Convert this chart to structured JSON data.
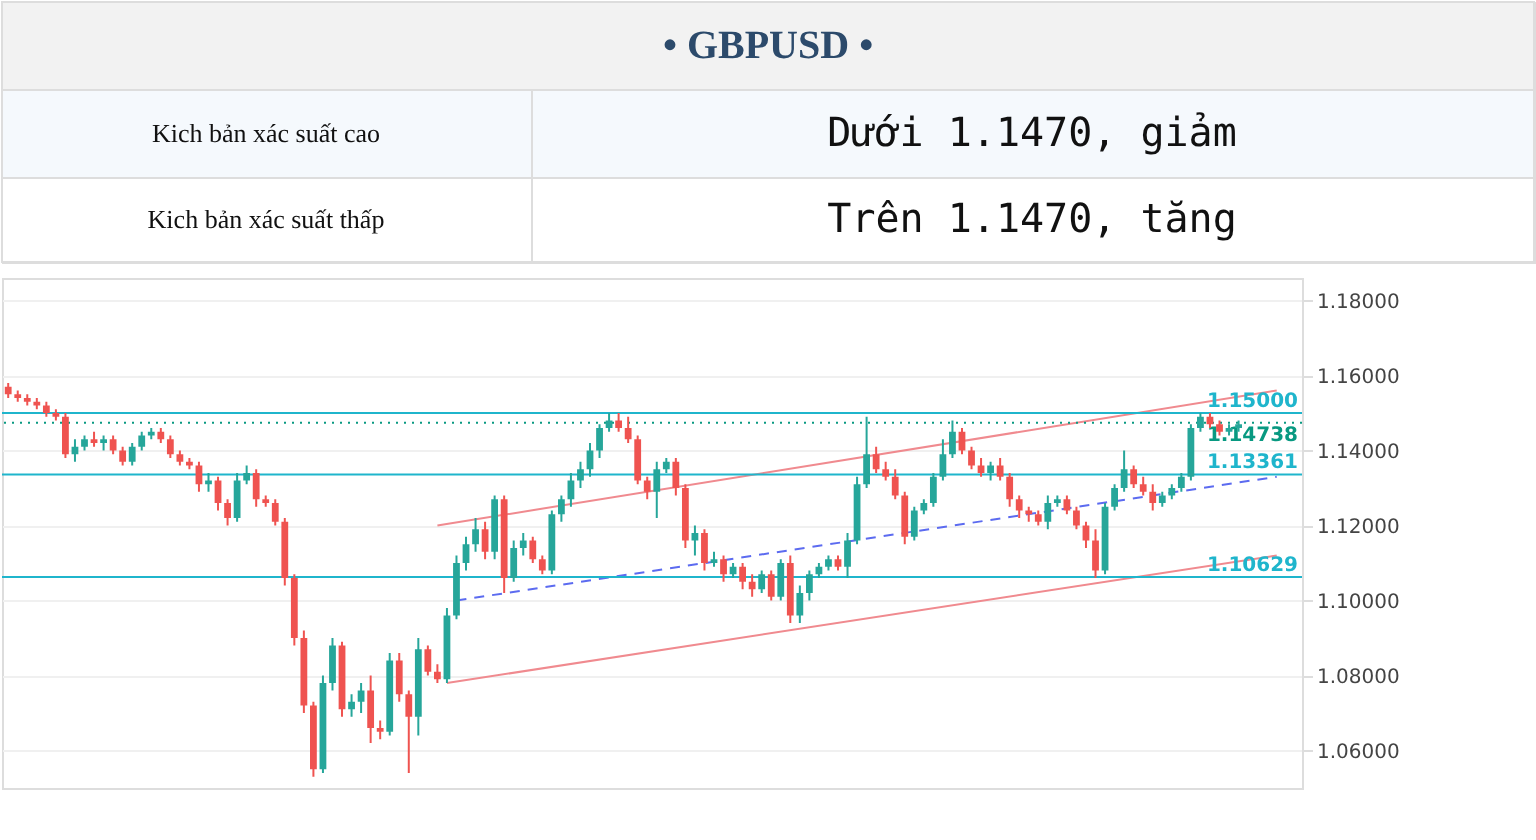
{
  "chart_data": {
    "type": "candlestick",
    "title": "•   GBPUSD •",
    "annotations": [
      "Kich bản xác suất cao",
      "Dưới 1.1470, giảm",
      "Kich bản xác suất thấp",
      "Trên 1.1470, tăng"
    ],
    "categories": [
      null,
      null,
      null,
      null,
      null,
      null,
      null,
      null,
      null,
      null,
      null,
      null,
      null,
      null,
      null,
      null,
      null,
      null,
      null,
      null,
      null,
      null,
      null,
      null,
      null,
      null,
      null,
      null,
      null,
      null,
      null,
      null,
      null,
      null,
      null,
      null,
      null,
      null,
      null,
      null,
      null,
      null,
      null,
      null,
      null,
      null,
      null,
      null,
      null,
      null,
      null,
      null,
      null,
      null,
      null,
      null,
      null,
      null,
      null,
      null,
      null,
      null,
      null,
      null,
      null,
      null,
      null,
      null,
      null,
      null,
      null,
      null,
      null,
      null,
      null,
      null,
      null,
      null,
      null,
      null,
      null,
      null,
      null,
      null,
      null,
      null,
      null,
      null,
      null,
      null,
      null,
      null,
      null,
      null,
      null,
      null,
      null,
      null,
      null,
      null,
      null,
      null,
      null,
      null,
      null,
      null,
      null,
      null,
      null,
      null,
      null,
      null,
      null,
      null,
      null,
      null,
      null,
      null,
      null,
      null,
      null,
      null,
      null,
      null,
      null,
      null,
      null,
      null,
      null,
      null,
      null,
      null,
      null,
      null,
      null,
      null
    ],
    "ohlc": [
      [
        1.157,
        1.158,
        1.154,
        1.155
      ],
      [
        1.155,
        1.156,
        1.153,
        1.154
      ],
      [
        1.154,
        1.155,
        1.152,
        1.153
      ],
      [
        1.153,
        1.154,
        1.151,
        1.152
      ],
      [
        1.152,
        1.153,
        1.149,
        1.15
      ],
      [
        1.15,
        1.151,
        1.148,
        1.149
      ],
      [
        1.149,
        1.15,
        1.138,
        1.139
      ],
      [
        1.139,
        1.143,
        1.137,
        1.141
      ],
      [
        1.141,
        1.144,
        1.14,
        1.143
      ],
      [
        1.143,
        1.145,
        1.141,
        1.142
      ],
      [
        1.142,
        1.144,
        1.14,
        1.143
      ],
      [
        1.143,
        1.144,
        1.139,
        1.14
      ],
      [
        1.14,
        1.141,
        1.136,
        1.137
      ],
      [
        1.137,
        1.142,
        1.136,
        1.141
      ],
      [
        1.141,
        1.145,
        1.14,
        1.144
      ],
      [
        1.144,
        1.146,
        1.143,
        1.145
      ],
      [
        1.145,
        1.146,
        1.142,
        1.143
      ],
      [
        1.143,
        1.144,
        1.138,
        1.139
      ],
      [
        1.139,
        1.14,
        1.136,
        1.137
      ],
      [
        1.137,
        1.138,
        1.135,
        1.136
      ],
      [
        1.136,
        1.137,
        1.129,
        1.131
      ],
      [
        1.131,
        1.134,
        1.129,
        1.132
      ],
      [
        1.132,
        1.133,
        1.124,
        1.126
      ],
      [
        1.126,
        1.127,
        1.12,
        1.122
      ],
      [
        1.122,
        1.134,
        1.121,
        1.132
      ],
      [
        1.132,
        1.136,
        1.131,
        1.134
      ],
      [
        1.134,
        1.135,
        1.125,
        1.127
      ],
      [
        1.127,
        1.128,
        1.125,
        1.126
      ],
      [
        1.126,
        1.127,
        1.12,
        1.121
      ],
      [
        1.121,
        1.122,
        1.104,
        1.106
      ],
      [
        1.106,
        1.107,
        1.088,
        1.09
      ],
      [
        1.09,
        1.092,
        1.07,
        1.072
      ],
      [
        1.072,
        1.073,
        1.053,
        1.055
      ],
      [
        1.055,
        1.08,
        1.054,
        1.078
      ],
      [
        1.078,
        1.09,
        1.076,
        1.088
      ],
      [
        1.088,
        1.089,
        1.069,
        1.071
      ],
      [
        1.071,
        1.075,
        1.069,
        1.073
      ],
      [
        1.073,
        1.078,
        1.07,
        1.076
      ],
      [
        1.076,
        1.08,
        1.062,
        1.066
      ],
      [
        1.066,
        1.068,
        1.063,
        1.065
      ],
      [
        1.065,
        1.086,
        1.064,
        1.084
      ],
      [
        1.084,
        1.086,
        1.073,
        1.075
      ],
      [
        1.075,
        1.076,
        1.054,
        1.069
      ],
      [
        1.069,
        1.09,
        1.064,
        1.087
      ],
      [
        1.087,
        1.088,
        1.08,
        1.081
      ],
      [
        1.081,
        1.083,
        1.078,
        1.079
      ],
      [
        1.079,
        1.098,
        1.078,
        1.096
      ],
      [
        1.096,
        1.112,
        1.095,
        1.11
      ],
      [
        1.11,
        1.117,
        1.108,
        1.115
      ],
      [
        1.115,
        1.122,
        1.113,
        1.119
      ],
      [
        1.119,
        1.121,
        1.111,
        1.113
      ],
      [
        1.113,
        1.128,
        1.111,
        1.127
      ],
      [
        1.127,
        1.128,
        1.102,
        1.106
      ],
      [
        1.106,
        1.116,
        1.105,
        1.114
      ],
      [
        1.114,
        1.118,
        1.112,
        1.116
      ],
      [
        1.116,
        1.117,
        1.11,
        1.111
      ],
      [
        1.111,
        1.112,
        1.107,
        1.108
      ],
      [
        1.108,
        1.124,
        1.107,
        1.123
      ],
      [
        1.123,
        1.128,
        1.121,
        1.127
      ],
      [
        1.127,
        1.134,
        1.125,
        1.132
      ],
      [
        1.132,
        1.137,
        1.13,
        1.135
      ],
      [
        1.135,
        1.142,
        1.133,
        1.14
      ],
      [
        1.14,
        1.147,
        1.138,
        1.146
      ],
      [
        1.146,
        1.15,
        1.145,
        1.148
      ],
      [
        1.148,
        1.15,
        1.145,
        1.146
      ],
      [
        1.146,
        1.149,
        1.142,
        1.143
      ],
      [
        1.143,
        1.144,
        1.131,
        1.132
      ],
      [
        1.132,
        1.133,
        1.127,
        1.129
      ],
      [
        1.129,
        1.137,
        1.122,
        1.135
      ],
      [
        1.135,
        1.138,
        1.134,
        1.137
      ],
      [
        1.137,
        1.138,
        1.128,
        1.13
      ],
      [
        1.13,
        1.131,
        1.114,
        1.116
      ],
      [
        1.116,
        1.12,
        1.112,
        1.118
      ],
      [
        1.118,
        1.119,
        1.108,
        1.11
      ],
      [
        1.11,
        1.113,
        1.109,
        1.111
      ],
      [
        1.111,
        1.112,
        1.105,
        1.107
      ],
      [
        1.107,
        1.11,
        1.106,
        1.109
      ],
      [
        1.109,
        1.11,
        1.103,
        1.105
      ],
      [
        1.105,
        1.107,
        1.101,
        1.103
      ],
      [
        1.103,
        1.108,
        1.102,
        1.107
      ],
      [
        1.107,
        1.108,
        1.1,
        1.101
      ],
      [
        1.101,
        1.111,
        1.1,
        1.11
      ],
      [
        1.11,
        1.112,
        1.094,
        1.096
      ],
      [
        1.096,
        1.104,
        1.094,
        1.102
      ],
      [
        1.102,
        1.108,
        1.1,
        1.107
      ],
      [
        1.107,
        1.11,
        1.106,
        1.109
      ],
      [
        1.109,
        1.112,
        1.108,
        1.111
      ],
      [
        1.111,
        1.112,
        1.108,
        1.109
      ],
      [
        1.109,
        1.118,
        1.106,
        1.116
      ],
      [
        1.116,
        1.133,
        1.115,
        1.131
      ],
      [
        1.131,
        1.149,
        1.13,
        1.139
      ],
      [
        1.139,
        1.141,
        1.134,
        1.135
      ],
      [
        1.135,
        1.137,
        1.132,
        1.133
      ],
      [
        1.133,
        1.135,
        1.127,
        1.128
      ],
      [
        1.128,
        1.129,
        1.115,
        1.117
      ],
      [
        1.117,
        1.125,
        1.116,
        1.124
      ],
      [
        1.124,
        1.127,
        1.123,
        1.126
      ],
      [
        1.126,
        1.134,
        1.125,
        1.133
      ],
      [
        1.133,
        1.143,
        1.132,
        1.139
      ],
      [
        1.139,
        1.148,
        1.138,
        1.145
      ],
      [
        1.145,
        1.146,
        1.139,
        1.14
      ],
      [
        1.14,
        1.141,
        1.135,
        1.136
      ],
      [
        1.136,
        1.138,
        1.133,
        1.134
      ],
      [
        1.134,
        1.137,
        1.132,
        1.136
      ],
      [
        1.136,
        1.138,
        1.132,
        1.133
      ],
      [
        1.133,
        1.134,
        1.125,
        1.127
      ],
      [
        1.127,
        1.128,
        1.122,
        1.124
      ],
      [
        1.124,
        1.125,
        1.121,
        1.123
      ],
      [
        1.123,
        1.124,
        1.12,
        1.121
      ],
      [
        1.121,
        1.128,
        1.119,
        1.126
      ],
      [
        1.126,
        1.128,
        1.125,
        1.127
      ],
      [
        1.127,
        1.128,
        1.123,
        1.124
      ],
      [
        1.124,
        1.125,
        1.119,
        1.12
      ],
      [
        1.12,
        1.121,
        1.114,
        1.116
      ],
      [
        1.116,
        1.119,
        1.106,
        1.108
      ],
      [
        1.108,
        1.126,
        1.107,
        1.125
      ],
      [
        1.125,
        1.131,
        1.124,
        1.13
      ],
      [
        1.13,
        1.14,
        1.129,
        1.135
      ],
      [
        1.135,
        1.136,
        1.13,
        1.131
      ],
      [
        1.131,
        1.133,
        1.128,
        1.129
      ],
      [
        1.129,
        1.131,
        1.124,
        1.126
      ],
      [
        1.126,
        1.129,
        1.125,
        1.128
      ],
      [
        1.128,
        1.131,
        1.127,
        1.13
      ],
      [
        1.13,
        1.134,
        1.129,
        1.133
      ],
      [
        1.133,
        1.147,
        1.132,
        1.146
      ],
      [
        1.146,
        1.15,
        1.145,
        1.149
      ],
      [
        1.149,
        1.15,
        1.146,
        1.147
      ],
      [
        1.147,
        1.148,
        1.144,
        1.145
      ],
      [
        1.145,
        1.147,
        1.144,
        1.146
      ],
      [
        1.146,
        1.148,
        1.145,
        1.147
      ],
      null,
      null,
      null,
      null,
      null,
      null
    ],
    "series": [
      {
        "type": "line",
        "color": "#f08a8f",
        "line_style": "solid",
        "values": [
          null,
          null,
          null,
          null,
          null,
          null,
          null,
          null,
          null,
          null,
          null,
          null,
          null,
          null,
          null,
          null,
          null,
          null,
          null,
          null,
          null,
          null,
          null,
          null,
          null,
          null,
          null,
          null,
          null,
          null,
          null,
          null,
          null,
          null,
          null,
          null,
          null,
          null,
          null,
          null,
          null,
          null,
          null,
          null,
          null,
          1.12,
          null,
          null,
          null,
          null,
          null,
          null,
          null,
          null,
          null,
          null,
          null,
          null,
          null,
          null,
          null,
          null,
          null,
          null,
          null,
          null,
          null,
          null,
          null,
          null,
          null,
          null,
          null,
          null,
          null,
          null,
          null,
          null,
          null,
          null,
          null,
          null,
          null,
          null,
          null,
          null,
          null,
          null,
          null,
          null,
          null,
          null,
          null,
          null,
          null,
          null,
          null,
          null,
          null,
          null,
          null,
          null,
          null,
          null,
          null,
          null,
          null,
          null,
          null,
          null,
          null,
          null,
          null,
          null,
          null,
          null,
          null,
          null,
          null,
          null,
          null,
          null,
          null,
          null,
          null,
          null,
          null,
          null,
          null,
          null,
          null,
          null,
          null,
          1.156,
          null,
          null
        ]
      },
      {
        "type": "line",
        "color": "#f08a8f",
        "line_style": "solid",
        "values": [
          null,
          null,
          null,
          null,
          null,
          null,
          null,
          null,
          null,
          null,
          null,
          null,
          null,
          null,
          null,
          null,
          null,
          null,
          null,
          null,
          null,
          null,
          null,
          null,
          null,
          null,
          null,
          null,
          null,
          null,
          null,
          null,
          null,
          null,
          null,
          null,
          null,
          null,
          null,
          null,
          null,
          null,
          null,
          null,
          null,
          null,
          1.078,
          null,
          null,
          null,
          null,
          null,
          null,
          null,
          null,
          null,
          null,
          null,
          null,
          null,
          null,
          null,
          null,
          null,
          null,
          null,
          null,
          null,
          null,
          null,
          null,
          null,
          null,
          null,
          null,
          null,
          null,
          null,
          null,
          null,
          null,
          null,
          null,
          null,
          null,
          null,
          null,
          null,
          null,
          null,
          null,
          null,
          null,
          null,
          null,
          null,
          null,
          null,
          null,
          null,
          null,
          null,
          null,
          null,
          null,
          null,
          null,
          null,
          null,
          null,
          null,
          null,
          null,
          null,
          null,
          null,
          null,
          null,
          null,
          null,
          null,
          null,
          null,
          null,
          null,
          null,
          null,
          null,
          null,
          null,
          null,
          null,
          null,
          1.112,
          null,
          null
        ]
      },
      {
        "type": "line",
        "color": "#5c6bf0",
        "line_style": "dashed",
        "values": [
          null,
          null,
          null,
          null,
          null,
          null,
          null,
          null,
          null,
          null,
          null,
          null,
          null,
          null,
          null,
          null,
          null,
          null,
          null,
          null,
          null,
          null,
          null,
          null,
          null,
          null,
          null,
          null,
          null,
          null,
          null,
          null,
          null,
          null,
          null,
          null,
          null,
          null,
          null,
          null,
          null,
          null,
          null,
          null,
          null,
          null,
          null,
          1.1,
          null,
          null,
          null,
          null,
          null,
          null,
          null,
          null,
          null,
          null,
          null,
          null,
          null,
          null,
          null,
          null,
          null,
          null,
          null,
          null,
          null,
          null,
          null,
          null,
          null,
          null,
          null,
          null,
          null,
          null,
          null,
          null,
          null,
          null,
          null,
          null,
          null,
          null,
          null,
          null,
          null,
          null,
          null,
          null,
          null,
          null,
          null,
          null,
          null,
          null,
          null,
          null,
          null,
          null,
          null,
          null,
          null,
          null,
          null,
          null,
          null,
          null,
          null,
          null,
          null,
          null,
          null,
          null,
          null,
          null,
          null,
          null,
          null,
          null,
          null,
          null,
          null,
          null,
          null,
          null,
          null,
          null,
          null,
          null,
          null,
          1.133,
          null,
          null
        ]
      }
    ],
    "ylim": [
      1.05,
      1.186
    ],
    "yticks": [
      {
        "value": 1.06,
        "label": "1.06000"
      },
      {
        "value": 1.08,
        "label": "1.08000"
      },
      {
        "value": 1.1,
        "label": "1.10000"
      },
      {
        "value": 1.12,
        "label": "1.12000"
      },
      {
        "value": 1.14,
        "label": "1.14000"
      },
      {
        "value": 1.16,
        "label": "1.16000"
      },
      {
        "value": 1.18,
        "label": "1.18000"
      }
    ],
    "ref_lines": [
      {
        "axis": "y",
        "value": 1.15,
        "label": "1.15000",
        "color": "#1fb5cc",
        "line_style": "solid"
      },
      {
        "axis": "y",
        "value": 1.14738,
        "label": "1.14738",
        "color": "#089981",
        "line_style": "dotted"
      },
      {
        "axis": "y",
        "value": 1.13361,
        "label": "1.13361",
        "color": "#1fb5cc",
        "line_style": "solid"
      },
      {
        "axis": "y",
        "value": 1.10629,
        "label": "1.10629",
        "color": "#1fb5cc",
        "line_style": "solid"
      }
    ],
    "grid": "y",
    "tick_labels": "y"
  }
}
